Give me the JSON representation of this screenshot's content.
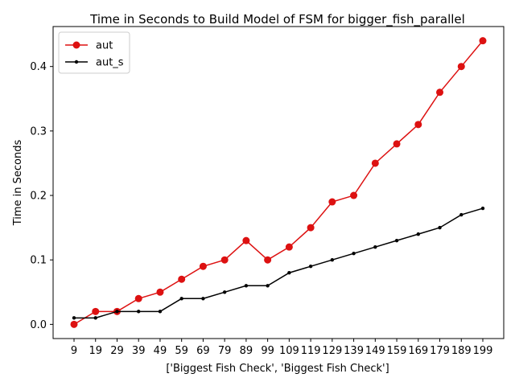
{
  "chart_data": {
    "type": "line",
    "title": "Time in Seconds to Build Model of FSM for bigger_fish_parallel",
    "xlabel": "['Biggest Fish Check', 'Biggest Fish Check']",
    "ylabel": "Time in Seconds",
    "categories": [
      "9",
      "19",
      "29",
      "39",
      "49",
      "59",
      "69",
      "79",
      "89",
      "99",
      "109",
      "119",
      "129",
      "139",
      "149",
      "159",
      "169",
      "179",
      "189",
      "199"
    ],
    "yticks": [
      "0.0",
      "0.1",
      "0.2",
      "0.3",
      "0.4"
    ],
    "ylim": [
      -0.022,
      0.462
    ],
    "grid": false,
    "legend_position": "top-left",
    "series": [
      {
        "name": "aut",
        "color": "#dd1111",
        "marker": "large-circle",
        "values": [
          0.0,
          0.02,
          0.02,
          0.04,
          0.05,
          0.07,
          0.09,
          0.1,
          0.13,
          0.1,
          0.12,
          0.15,
          0.19,
          0.2,
          0.25,
          0.28,
          0.31,
          0.36,
          0.4,
          0.44
        ]
      },
      {
        "name": "aut_s",
        "color": "#000000",
        "marker": "small-dot",
        "values": [
          0.01,
          0.01,
          0.02,
          0.02,
          0.02,
          0.04,
          0.04,
          0.05,
          0.06,
          0.06,
          0.08,
          0.09,
          0.1,
          0.11,
          0.12,
          0.13,
          0.14,
          0.15,
          0.17,
          0.18
        ]
      }
    ]
  }
}
